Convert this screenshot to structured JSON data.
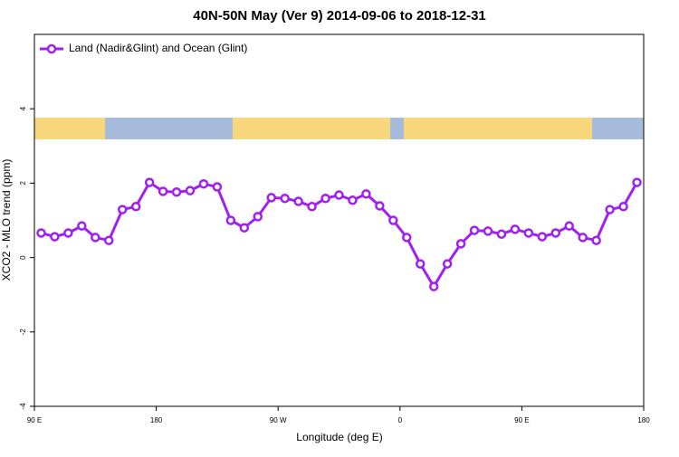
{
  "chart_data": {
    "type": "line",
    "title": "40N-50N May (Ver 9)   2014-09-06 to 2018-12-31",
    "x_label": "Longitude (deg E)",
    "y_label": "XCO2 - MLO trend (ppm)",
    "x": [
      95,
      105,
      115,
      125,
      135,
      145,
      155,
      165,
      175,
      185,
      195,
      205,
      215,
      225,
      235,
      245,
      255,
      265,
      275,
      285,
      295,
      305,
      315,
      325,
      335,
      345,
      355,
      365,
      375,
      385,
      395,
      405,
      415,
      425,
      435,
      445,
      455,
      465,
      475,
      485,
      495,
      505,
      515,
      525,
      535
    ],
    "series": [
      {
        "name": "Land (Nadir&Glint) and Ocean (Glint)",
        "color": "#a020f0",
        "values": [
          0.66,
          0.56,
          0.66,
          0.85,
          0.54,
          0.46,
          1.29,
          1.37,
          2.02,
          1.78,
          1.76,
          1.8,
          1.98,
          1.9,
          1.0,
          0.8,
          1.1,
          1.61,
          1.59,
          1.51,
          1.37,
          1.59,
          1.68,
          1.54,
          1.71,
          1.39,
          1.0,
          0.54,
          -0.17,
          -0.78,
          -0.17,
          0.37,
          0.73,
          0.71,
          0.63,
          0.76,
          0.66,
          0.56,
          0.66,
          0.85,
          0.54,
          0.46,
          1.29,
          1.37,
          2.02
        ]
      }
    ],
    "xlim": [
      90,
      540
    ],
    "xticks": [
      {
        "value": 90,
        "label": "90 E"
      },
      180,
      {
        "value": 270,
        "label": "90 W"
      },
      {
        "value": 360,
        "label": "0"
      },
      {
        "value": 450,
        "label": "90 E"
      },
      {
        "value": 540,
        "label": "180"
      }
    ],
    "ylim": [
      -4,
      6
    ],
    "yticks": [
      -4,
      -2,
      0,
      2,
      4
    ],
    "legend": "top-left"
  }
}
